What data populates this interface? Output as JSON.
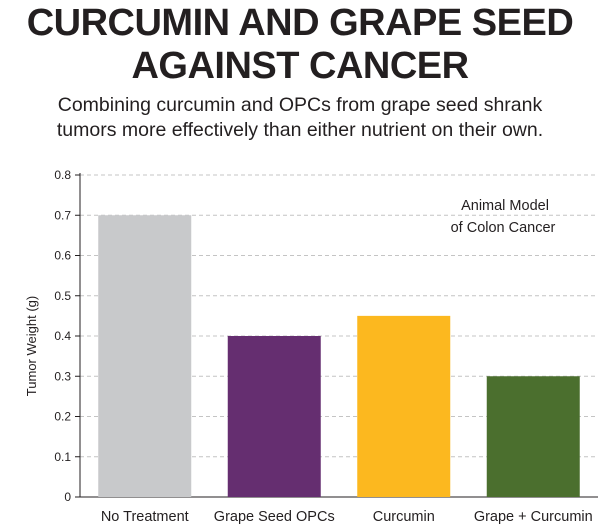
{
  "title_lines": [
    "CURCUMIN AND GRAPE SEED",
    "AGAINST CANCER"
  ],
  "subtitle_lines": [
    "Combining curcumin and OPCs from grape seed shrank",
    "tumors more effectively than either nutrient on their own."
  ],
  "chart_data": {
    "type": "bar",
    "title": "CURCUMIN AND GRAPE SEED AGAINST CANCER",
    "categories": [
      "No Treatment",
      "Grape Seed OPCs",
      "Curcumin",
      "Grape + Curcumin"
    ],
    "values": [
      0.7,
      0.4,
      0.45,
      0.3
    ],
    "colors": [
      "#c8c9cb",
      "#652e70",
      "#fcb81f",
      "#4b6f2e"
    ],
    "ylabel": "Tumor Weight (g)",
    "xlabel": "",
    "ylim": [
      0,
      0.8
    ],
    "yticks": [
      "0",
      "0.1",
      "0.2",
      "0.3",
      "0.4",
      "0.5",
      "0.6",
      "0.7",
      "0.8"
    ],
    "grid": true,
    "annotation_lines": [
      "Animal Model",
      "of Colon Cancer"
    ]
  }
}
